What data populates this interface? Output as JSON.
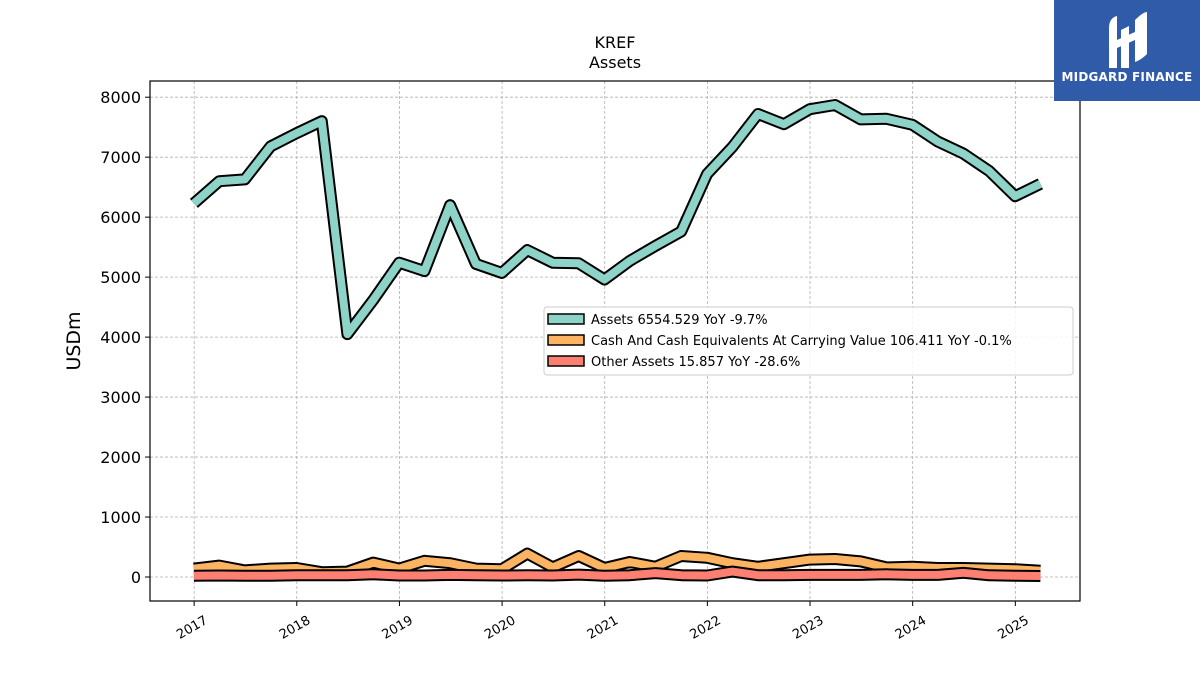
{
  "chart_data": {
    "type": "line",
    "title": "KREF",
    "subtitle": "Assets",
    "ylabel": "USDm",
    "xlabel": "",
    "ylim": [
      -400,
      8270
    ],
    "xlim": [
      2016.57,
      2025.63
    ],
    "yticks": [
      0,
      1000,
      2000,
      3000,
      4000,
      5000,
      6000,
      7000,
      8000
    ],
    "xticks": [
      "2017",
      "2018",
      "2019",
      "2020",
      "2021",
      "2022",
      "2023",
      "2024",
      "2025"
    ],
    "grid": true,
    "legend_position": "center-right",
    "x": [
      "2016-12-31",
      "2017-03-31",
      "2017-06-30",
      "2017-09-30",
      "2017-12-31",
      "2018-03-31",
      "2018-06-30",
      "2018-09-30",
      "2018-12-31",
      "2019-03-31",
      "2019-06-30",
      "2019-09-30",
      "2019-12-31",
      "2020-03-31",
      "2020-06-30",
      "2020-09-30",
      "2020-12-31",
      "2021-03-31",
      "2021-06-30",
      "2021-09-30",
      "2021-12-31",
      "2022-03-31",
      "2022-06-30",
      "2022-09-30",
      "2022-12-31",
      "2023-03-31",
      "2023-06-30",
      "2023-09-30",
      "2023-12-31",
      "2024-03-31",
      "2024-06-30",
      "2024-09-30",
      "2024-12-31",
      "2025-03-31"
    ],
    "series": [
      {
        "name": "Assets",
        "legend": "Assets  6554.529 YoY -9.7%",
        "color": "#8dd3c7",
        "values": [
          6230,
          6600,
          6630,
          7180,
          7400,
          7600,
          4050,
          4620,
          5240,
          5100,
          6200,
          5220,
          5070,
          5450,
          5240,
          5230,
          4960,
          5270,
          5520,
          5760,
          6720,
          7170,
          7720,
          7550,
          7800,
          7870,
          7630,
          7640,
          7540,
          7260,
          7060,
          6770,
          6350,
          6555
        ]
      },
      {
        "name": "Cash And Cash Equivalents At Carrying Value",
        "legend": "Cash And Cash Equivalents At Carrying Value  106.411 YoY -0.1%",
        "color": "#fdb462",
        "values": [
          140,
          190,
          110,
          140,
          150,
          80,
          90,
          240,
          140,
          270,
          230,
          140,
          130,
          390,
          160,
          350,
          150,
          250,
          170,
          350,
          320,
          230,
          170,
          230,
          290,
          300,
          260,
          160,
          170,
          150,
          150,
          140,
          130,
          106
        ]
      },
      {
        "name": "Other Assets",
        "legend": "Other Assets  15.857 YoY -28.6%",
        "color": "#fb8072",
        "values": [
          20,
          25,
          20,
          22,
          28,
          30,
          30,
          45,
          25,
          25,
          35,
          28,
          25,
          28,
          25,
          40,
          22,
          30,
          65,
          30,
          25,
          90,
          30,
          30,
          35,
          35,
          35,
          45,
          35,
          35,
          70,
          28,
          22,
          16
        ]
      }
    ]
  },
  "logo": {
    "text": "MIDGARD FINANCE"
  }
}
